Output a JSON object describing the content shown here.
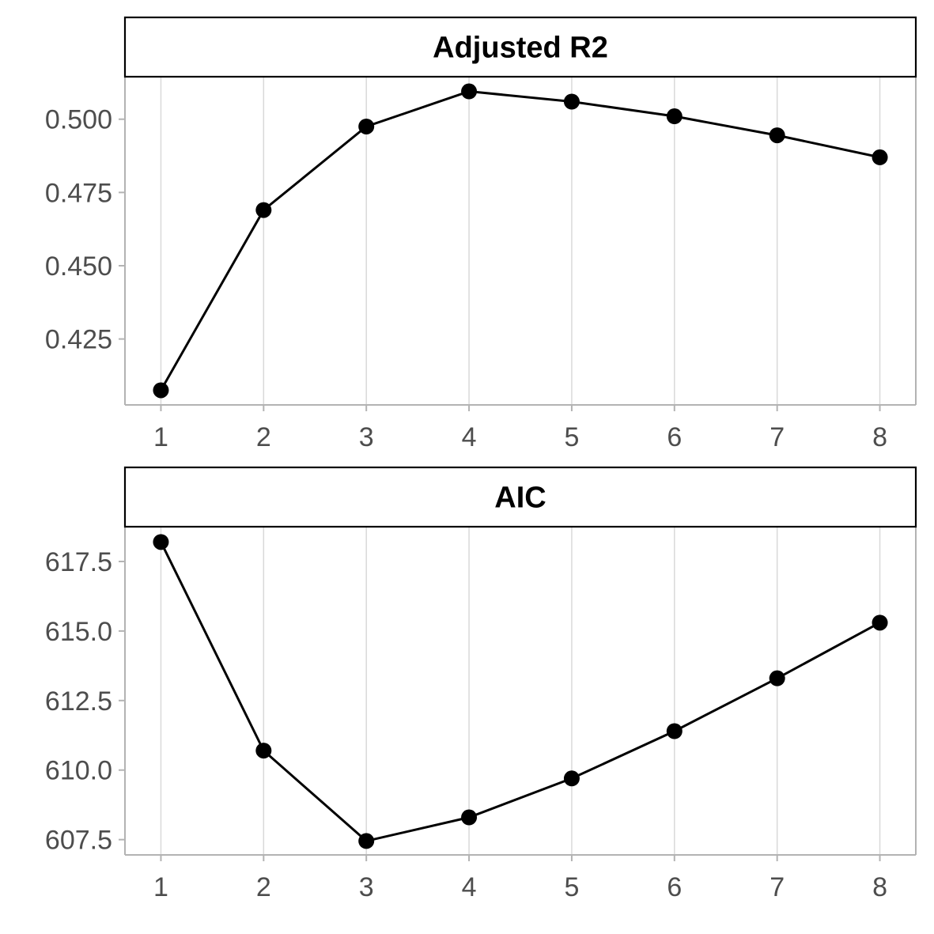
{
  "chart_data": [
    {
      "type": "line",
      "title": "Adjusted R2",
      "xlabel": "",
      "ylabel": "",
      "x": [
        1,
        2,
        3,
        4,
        5,
        6,
        7,
        8
      ],
      "series": [
        {
          "values": [
            0.4075,
            0.469,
            0.4975,
            0.5095,
            0.506,
            0.501,
            0.4945,
            0.487
          ]
        }
      ],
      "xticks": [
        "1",
        "2",
        "3",
        "4",
        "5",
        "6",
        "7",
        "8"
      ],
      "yticks": [
        "0.425",
        "0.450",
        "0.475",
        "0.500"
      ],
      "ytick_values": [
        0.425,
        0.45,
        0.475,
        0.5
      ],
      "xlim": [
        0.65,
        8.35
      ],
      "ylim": [
        0.4025,
        0.5145
      ],
      "grid": "vertical",
      "color": "#000000"
    },
    {
      "type": "line",
      "title": "AIC",
      "xlabel": "",
      "ylabel": "",
      "x": [
        1,
        2,
        3,
        4,
        5,
        6,
        7,
        8
      ],
      "series": [
        {
          "values": [
            618.2,
            610.7,
            607.45,
            608.3,
            609.7,
            611.4,
            613.3,
            615.3
          ]
        }
      ],
      "xticks": [
        "1",
        "2",
        "3",
        "4",
        "5",
        "6",
        "7",
        "8"
      ],
      "yticks": [
        "607.5",
        "610.0",
        "612.5",
        "615.0",
        "617.5"
      ],
      "ytick_values": [
        607.5,
        610.0,
        612.5,
        615.0,
        617.5
      ],
      "xlim": [
        0.65,
        8.35
      ],
      "ylim": [
        606.95,
        618.75
      ],
      "grid": "vertical",
      "color": "#000000"
    }
  ]
}
